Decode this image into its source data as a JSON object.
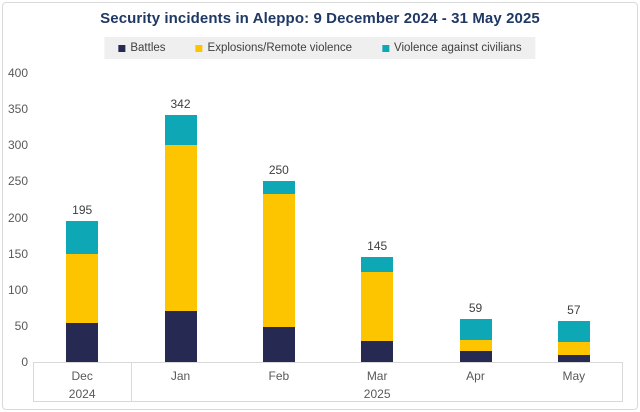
{
  "title": "Security incidents in Aleppo: 9 December 2024 - 31 May 2025",
  "legend": {
    "items": [
      {
        "label": "Battles",
        "color": "#262a52"
      },
      {
        "label": "Explosions/Remote violence",
        "color": "#fdc400"
      },
      {
        "label": "Violence against civilians",
        "color": "#0ea7b5"
      }
    ]
  },
  "colors": {
    "title": "#203864",
    "battles": "#262a52",
    "explosions": "#fdc400",
    "civilians": "#0ea7b5",
    "axis_text": "#595959",
    "data_label": "#404040"
  },
  "chart_data": {
    "type": "bar",
    "stacked": true,
    "title": "Security incidents in Aleppo: 9 December 2024 - 31 May 2025",
    "categories": [
      "Dec",
      "Jan",
      "Feb",
      "Mar",
      "Apr",
      "May"
    ],
    "year_groups": [
      {
        "label": "2024",
        "start": 0,
        "span": 1
      },
      {
        "label": "2025",
        "start": 1,
        "span": 5
      }
    ],
    "series": [
      {
        "name": "Battles",
        "color": "#262a52",
        "values": [
          54,
          70,
          48,
          29,
          15,
          10
        ]
      },
      {
        "name": "Explosions/Remote violence",
        "color": "#fdc400",
        "values": [
          96,
          230,
          184,
          95,
          16,
          17
        ]
      },
      {
        "name": "Violence against civilians",
        "color": "#0ea7b5",
        "values": [
          45,
          42,
          18,
          21,
          28,
          30
        ]
      }
    ],
    "totals": [
      195,
      342,
      250,
      145,
      59,
      57
    ],
    "xlabel": "",
    "ylabel": "",
    "ylim": [
      0,
      400
    ],
    "yticks": [
      400,
      350,
      300,
      250,
      200,
      150,
      100,
      50,
      0
    ],
    "grid": false,
    "legend_position": "top"
  }
}
